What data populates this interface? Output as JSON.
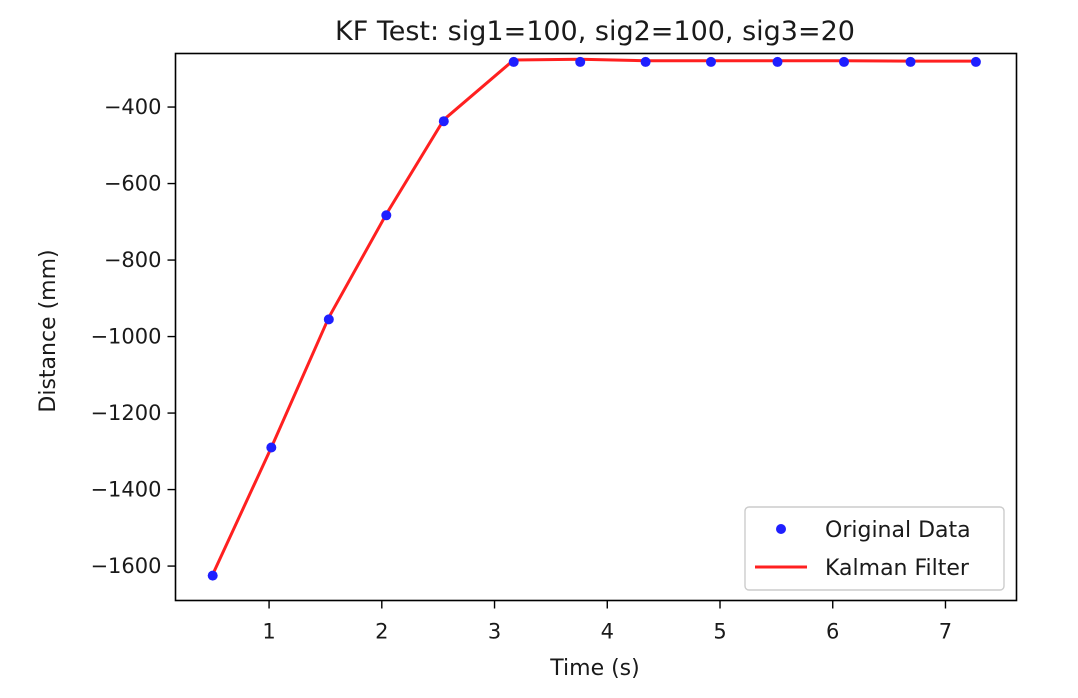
{
  "chart_data": {
    "type": "line",
    "title": "KF Test: sig1=100, sig2=100, sig3=20",
    "xlabel": "Time (s)",
    "ylabel": "Distance (mm)",
    "xlim": [
      0.17,
      7.63
    ],
    "ylim": [
      -1690,
      -260
    ],
    "xticks": [
      1,
      2,
      3,
      4,
      5,
      6,
      7
    ],
    "yticks": [
      -400,
      -600,
      -800,
      -1000,
      -1200,
      -1400,
      -1600
    ],
    "grid": false,
    "legend_position": "lower right",
    "series": [
      {
        "name": "Original Data",
        "style": "points",
        "color": "#1f1fff",
        "x": [
          0.5,
          1.02,
          1.53,
          2.04,
          2.55,
          3.17,
          3.76,
          4.34,
          4.92,
          5.51,
          6.1,
          6.69,
          7.27
        ],
        "y": [
          -1625,
          -1290,
          -955,
          -683,
          -437,
          -282,
          -282,
          -282,
          -282,
          -282,
          -282,
          -282,
          -282
        ]
      },
      {
        "name": "Kalman Filter",
        "style": "line",
        "color": "#ff2020",
        "x": [
          0.5,
          1.02,
          1.53,
          2.04,
          2.55,
          3.17,
          3.76,
          4.34,
          4.92,
          5.51,
          6.1,
          6.69,
          7.27
        ],
        "y": [
          -1622,
          -1290,
          -950,
          -680,
          -433,
          -277,
          -275,
          -279,
          -279,
          -279,
          -279,
          -280,
          -280
        ]
      }
    ]
  }
}
